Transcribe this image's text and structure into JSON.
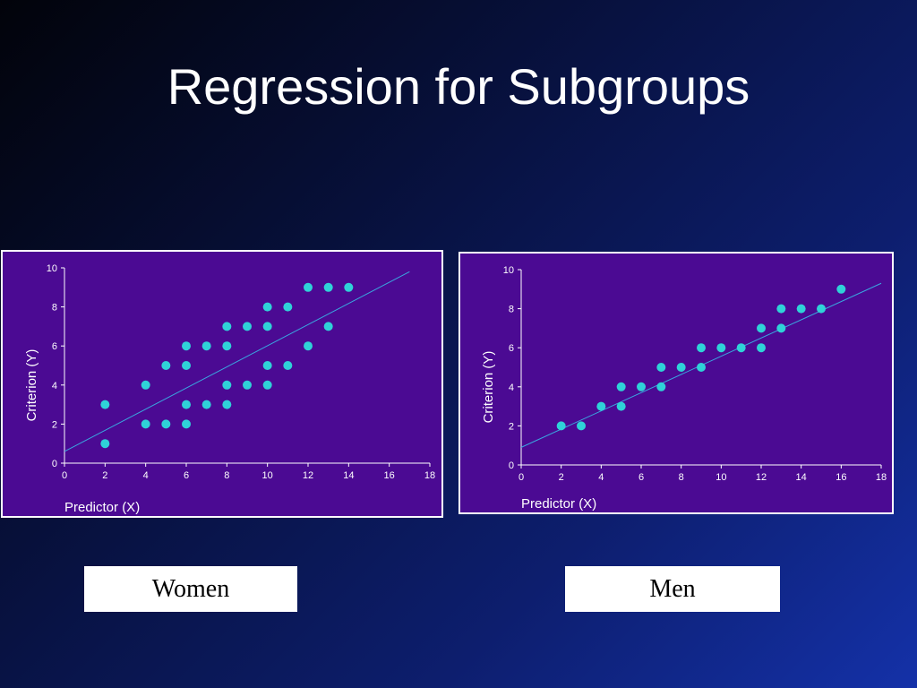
{
  "slide": {
    "title": "Regression for Subgroups"
  },
  "colors": {
    "background_dark": "#02030a",
    "background_light": "#1431a8",
    "panel": "#4b0a93",
    "points": "#2fd2d8",
    "regression_line": "#3aa6e0",
    "text": "#ffffff"
  },
  "chart_data": [
    {
      "type": "scatter",
      "caption": "Women",
      "xlabel": "Predictor (X)",
      "ylabel": "Criterion (Y)",
      "xlim": [
        0,
        18
      ],
      "ylim": [
        0,
        10
      ],
      "xticks": [
        0,
        2,
        4,
        6,
        8,
        10,
        12,
        14,
        16,
        18
      ],
      "yticks": [
        0,
        2,
        4,
        6,
        8,
        10
      ],
      "grid": false,
      "points": [
        [
          2,
          1
        ],
        [
          2,
          3
        ],
        [
          4,
          2
        ],
        [
          4,
          4
        ],
        [
          5,
          2
        ],
        [
          5,
          5
        ],
        [
          6,
          2
        ],
        [
          6,
          3
        ],
        [
          6,
          5
        ],
        [
          6,
          6
        ],
        [
          7,
          3
        ],
        [
          7,
          6
        ],
        [
          8,
          3
        ],
        [
          8,
          4
        ],
        [
          8,
          6
        ],
        [
          8,
          7
        ],
        [
          9,
          4
        ],
        [
          9,
          7
        ],
        [
          10,
          4
        ],
        [
          10,
          5
        ],
        [
          10,
          7
        ],
        [
          10,
          8
        ],
        [
          11,
          5
        ],
        [
          11,
          8
        ],
        [
          12,
          6
        ],
        [
          12,
          9
        ],
        [
          13,
          7
        ],
        [
          13,
          9
        ],
        [
          14,
          9
        ]
      ],
      "regression_line": [
        [
          0,
          0.6
        ],
        [
          17,
          9.8
        ]
      ]
    },
    {
      "type": "scatter",
      "caption": "Men",
      "xlabel": "Predictor (X)",
      "ylabel": "Criterion (Y)",
      "xlim": [
        0,
        18
      ],
      "ylim": [
        0,
        10
      ],
      "xticks": [
        0,
        2,
        4,
        6,
        8,
        10,
        12,
        14,
        16,
        18
      ],
      "yticks": [
        0,
        2,
        4,
        6,
        8,
        10
      ],
      "grid": false,
      "points": [
        [
          2,
          2
        ],
        [
          3,
          2
        ],
        [
          4,
          3
        ],
        [
          5,
          3
        ],
        [
          5,
          4
        ],
        [
          6,
          4
        ],
        [
          7,
          4
        ],
        [
          7,
          5
        ],
        [
          8,
          5
        ],
        [
          9,
          5
        ],
        [
          9,
          6
        ],
        [
          10,
          6
        ],
        [
          11,
          6
        ],
        [
          12,
          6
        ],
        [
          12,
          7
        ],
        [
          13,
          7
        ],
        [
          13,
          8
        ],
        [
          14,
          8
        ],
        [
          15,
          8
        ],
        [
          16,
          9
        ]
      ],
      "regression_line": [
        [
          0,
          0.9
        ],
        [
          18,
          9.3
        ]
      ]
    }
  ]
}
